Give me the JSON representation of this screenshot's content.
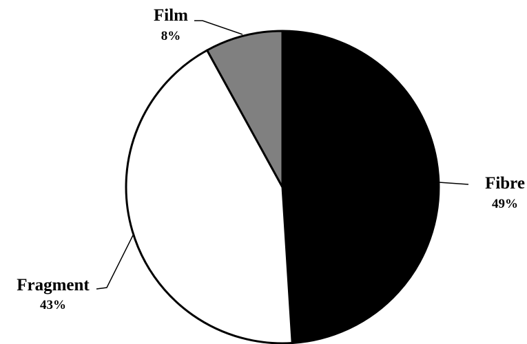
{
  "chart_data": {
    "type": "pie",
    "title": "",
    "start_angle_deg": 0,
    "direction": "clockwise",
    "slices": [
      {
        "label": "Fibre",
        "value": 49,
        "value_label": "49%",
        "color": "#000000"
      },
      {
        "label": "Fragment",
        "value": 43,
        "value_label": "43%",
        "color": "#ffffff"
      },
      {
        "label": "Film",
        "value": 8,
        "value_label": "8%",
        "color": "#808080"
      }
    ],
    "slice_border_color": "#000000",
    "legend": "none",
    "labels_outside_with_leader_lines": true
  }
}
